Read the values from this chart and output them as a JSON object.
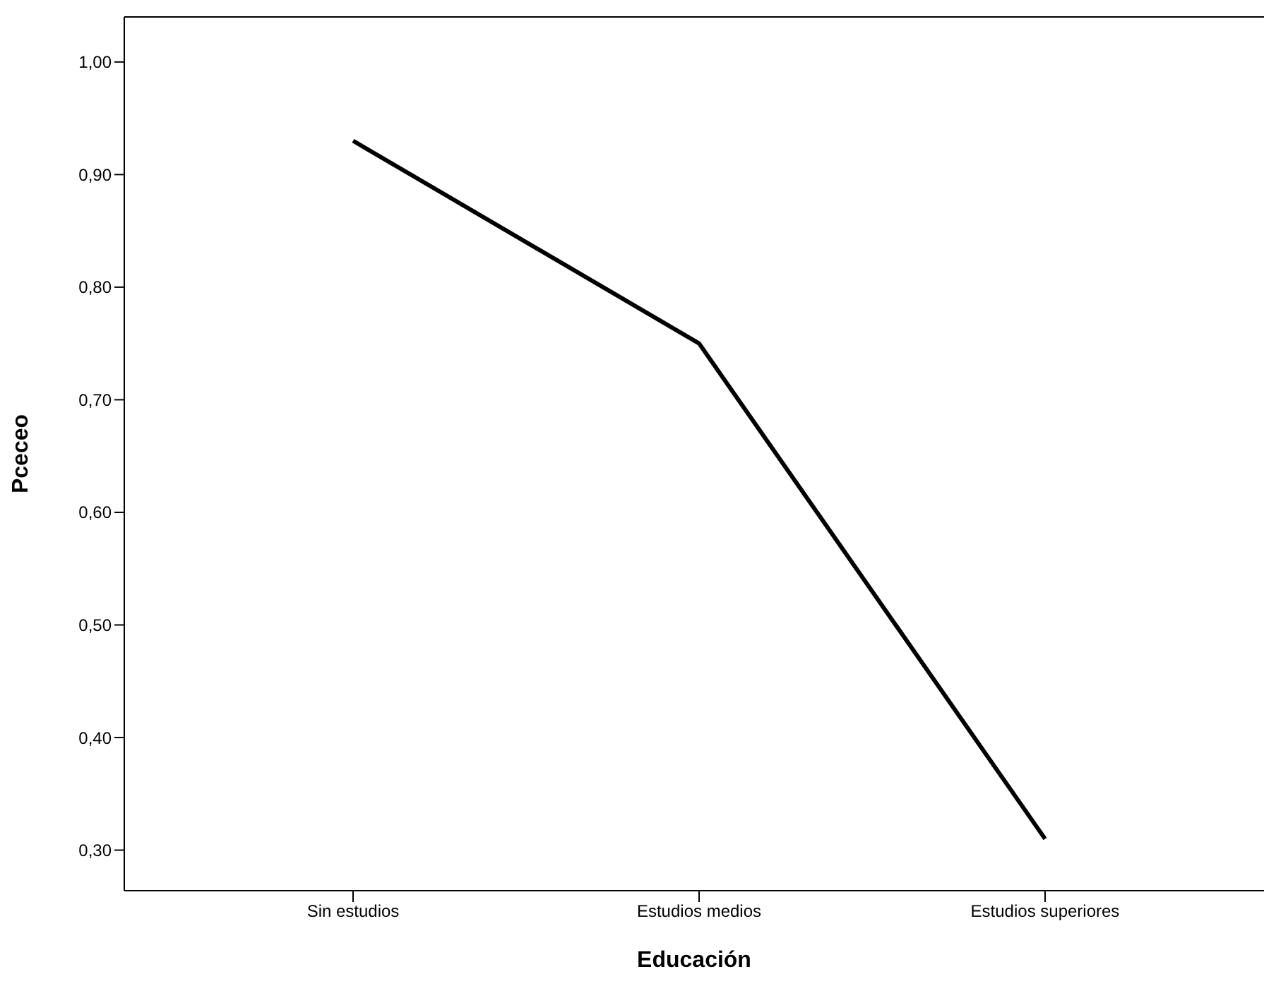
{
  "chart_data": {
    "type": "line",
    "xlabel": "Educación",
    "ylabel": "Pceceo",
    "categories": [
      "Sin estudios",
      "Estudios medios",
      "Estudios superiores"
    ],
    "series": [
      {
        "color": "#000000",
        "values": [
          0.93,
          0.75,
          0.31
        ]
      }
    ],
    "ylim": [
      0.264,
      1.04
    ],
    "yticks": [
      {
        "value": 0.3,
        "label": "0,30"
      },
      {
        "value": 0.4,
        "label": "0,40"
      },
      {
        "value": 0.5,
        "label": "0,50"
      },
      {
        "value": 0.6,
        "label": "0,60"
      },
      {
        "value": 0.7,
        "label": "0,70"
      },
      {
        "value": 0.8,
        "label": "0,80"
      },
      {
        "value": 0.9,
        "label": "0,90"
      },
      {
        "value": 1.0,
        "label": "1,00"
      }
    ],
    "grid": false,
    "marker": "none",
    "line_style": "solid"
  }
}
